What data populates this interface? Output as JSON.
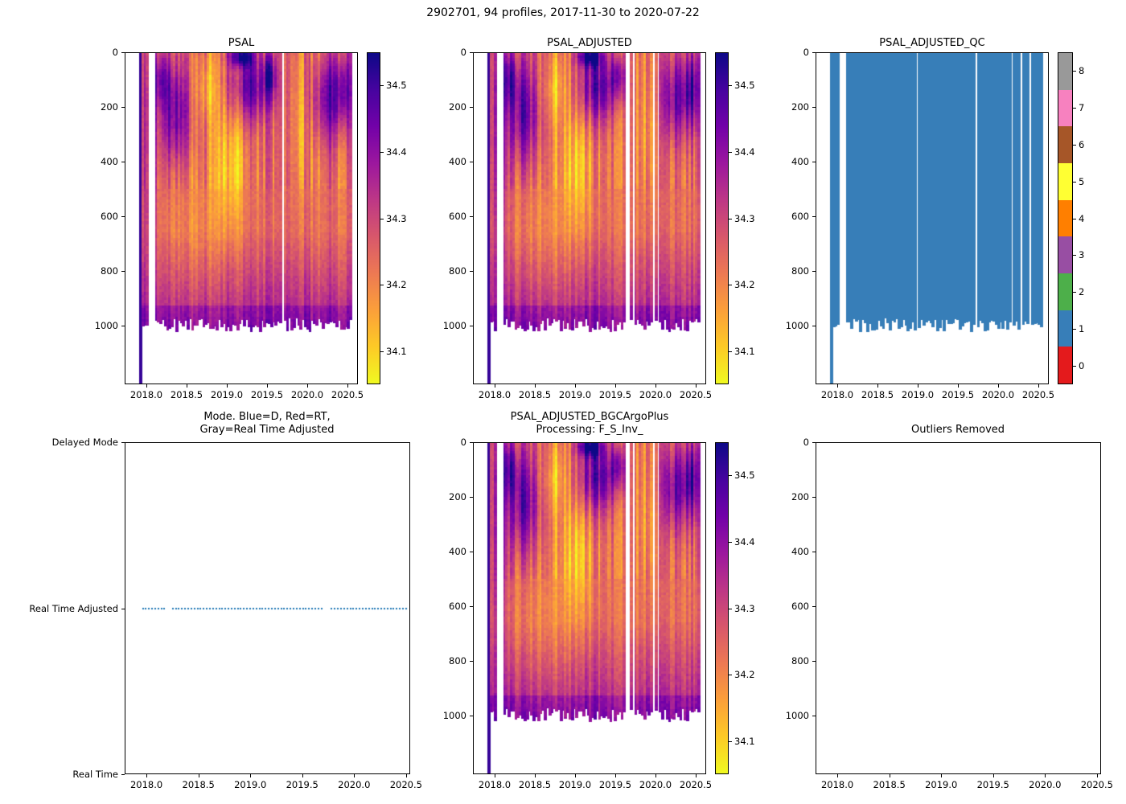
{
  "figure": {
    "suptitle": "2902701, 94 profiles, 2017-11-30 to 2020-07-22",
    "background": "#ffffff",
    "text_color": "#000000"
  },
  "colormap_plasma_r_stops": [
    "#0d0887",
    "#46039f",
    "#7201a8",
    "#9c179e",
    "#bd3786",
    "#d8576b",
    "#ed7953",
    "#fb9f3a",
    "#fdca26",
    "#f0f921"
  ],
  "qc_palette": [
    "#e41a1c",
    "#377eb8",
    "#4daf4a",
    "#984ea3",
    "#ff7f00",
    "#ffff33",
    "#a65628",
    "#f781bf",
    "#999999"
  ],
  "heatmap_features_note": "approximate high(+)/low(-) salinity patches read from the figure: time(year), depth(m), sigmas, amplitude(psu)",
  "heatmap_features": [
    {
      "t": 2018.35,
      "d": 220,
      "st": 0.14,
      "sd": 130,
      "a": 0.2
    },
    {
      "t": 2018.18,
      "d": 90,
      "st": 0.08,
      "sd": 70,
      "a": 0.15
    },
    {
      "t": 2019.3,
      "d": 120,
      "st": 0.18,
      "sd": 90,
      "a": 0.22
    },
    {
      "t": 2019.18,
      "d": 10,
      "st": 0.1,
      "sd": 25,
      "a": 0.3
    },
    {
      "t": 2019.55,
      "d": 80,
      "st": 0.06,
      "sd": 60,
      "a": 0.18
    },
    {
      "t": 2020.28,
      "d": 160,
      "st": 0.16,
      "sd": 110,
      "a": 0.2
    },
    {
      "t": 2020.47,
      "d": 120,
      "st": 0.07,
      "sd": 100,
      "a": 0.16
    },
    {
      "t": 2019.05,
      "d": 420,
      "st": 0.14,
      "sd": 160,
      "a": -0.12
    },
    {
      "t": 2018.75,
      "d": 120,
      "st": 0.1,
      "sd": 90,
      "a": -0.1
    },
    {
      "t": 2019.95,
      "d": 250,
      "st": 0.09,
      "sd": 180,
      "a": -0.08
    },
    {
      "t": 2018.6,
      "d": 650,
      "st": 0.25,
      "sd": 250,
      "a": -0.05
    },
    {
      "t": 2018.05,
      "d": 300,
      "st": 0.05,
      "sd": 400,
      "a": 0.22
    }
  ],
  "chart_data": [
    {
      "id": "psal",
      "type": "heatmap",
      "title": "PSAL",
      "x": {
        "lim": [
          2017.73,
          2020.63
        ],
        "ticks": [
          2018.0,
          2018.5,
          2019.0,
          2019.5,
          2020.0,
          2020.5
        ],
        "tick_labels": [
          "2018.0",
          "2018.5",
          "2019.0",
          "2019.5",
          "2020.0",
          "2020.5"
        ]
      },
      "y": {
        "lim": [
          0,
          1215
        ],
        "ticks": [
          0,
          200,
          400,
          600,
          800,
          1000
        ],
        "tick_labels": [
          "0",
          "200",
          "400",
          "600",
          "800",
          "1000"
        ],
        "inverted": true
      },
      "colorbar": {
        "colormap": "plasma_r",
        "vmin": 34.05,
        "vmax": 34.55,
        "ticks": [
          34.1,
          34.2,
          34.3,
          34.4,
          34.5
        ],
        "tick_labels": [
          "34.1",
          "34.2",
          "34.3",
          "34.4",
          "34.5"
        ]
      },
      "data_summary": {
        "n_profiles": 94,
        "time_start": 2017.92,
        "time_end": 2020.55,
        "profile_max_depth": 1000,
        "first_profile_depth": 1215,
        "gaps": [
          2018.03,
          2018.06,
          2018.09,
          2019.7
        ],
        "value_range": [
          34.05,
          34.55
        ]
      },
      "seed": 11
    },
    {
      "id": "psal_adjusted",
      "type": "heatmap",
      "title": "PSAL_ADJUSTED",
      "x": {
        "lim": [
          2017.73,
          2020.63
        ],
        "ticks": [
          2018.0,
          2018.5,
          2019.0,
          2019.5,
          2020.0,
          2020.5
        ],
        "tick_labels": [
          "2018.0",
          "2018.5",
          "2019.0",
          "2019.5",
          "2020.0",
          "2020.5"
        ]
      },
      "y": {
        "lim": [
          0,
          1215
        ],
        "ticks": [
          0,
          200,
          400,
          600,
          800,
          1000
        ],
        "tick_labels": [
          "0",
          "200",
          "400",
          "600",
          "800",
          "1000"
        ],
        "inverted": true
      },
      "colorbar": {
        "colormap": "plasma_r",
        "vmin": 34.05,
        "vmax": 34.55,
        "ticks": [
          34.1,
          34.2,
          34.3,
          34.4,
          34.5
        ],
        "tick_labels": [
          "34.1",
          "34.2",
          "34.3",
          "34.4",
          "34.5"
        ]
      },
      "data_summary": {
        "n_profiles": 94,
        "time_start": 2017.92,
        "time_end": 2020.55,
        "profile_max_depth": 1000,
        "first_profile_depth": 1215,
        "gaps": [
          2018.03,
          2018.06,
          2018.09,
          2019.66,
          2019.72,
          2019.98,
          2020.04
        ],
        "value_range": [
          34.05,
          34.55
        ]
      },
      "seed": 23
    },
    {
      "id": "qc",
      "type": "heatmap_discrete",
      "title": "PSAL_ADJUSTED_QC",
      "x": {
        "lim": [
          2017.73,
          2020.63
        ],
        "ticks": [
          2018.0,
          2018.5,
          2019.0,
          2019.5,
          2020.0,
          2020.5
        ],
        "tick_labels": [
          "2018.0",
          "2018.5",
          "2019.0",
          "2019.5",
          "2020.0",
          "2020.5"
        ]
      },
      "y": {
        "lim": [
          0,
          1215
        ],
        "ticks": [
          0,
          200,
          400,
          600,
          800,
          1000
        ],
        "tick_labels": [
          "0",
          "200",
          "400",
          "600",
          "800",
          "1000"
        ],
        "inverted": true
      },
      "colorbar": {
        "discrete": true,
        "vmin": -0.5,
        "vmax": 8.5,
        "ticks": [
          0,
          1,
          2,
          3,
          4,
          5,
          6,
          7,
          8
        ],
        "tick_labels": [
          "0",
          "1",
          "2",
          "3",
          "4",
          "5",
          "6",
          "7",
          "8"
        ]
      },
      "dominant_qc_value": 1,
      "data_summary": {
        "n_profiles": 94,
        "time_start": 2017.92,
        "time_end": 2020.55,
        "profile_max_depth": 1000,
        "first_profile_depth": 1215,
        "gaps": [
          2018.03,
          2018.06,
          2018.09,
          2018.99,
          2019.72,
          2020.19,
          2020.3,
          2020.41
        ],
        "value_range": [
          1,
          1
        ]
      },
      "seed": 5
    },
    {
      "id": "mode",
      "type": "scatter",
      "title_lines": [
        "Mode. Blue=D, Red=RT,",
        "Gray=Real Time Adjusted"
      ],
      "x": {
        "lim": [
          2017.79,
          2020.54
        ],
        "ticks": [
          2018.0,
          2018.5,
          2019.0,
          2019.5,
          2020.0,
          2020.5
        ],
        "tick_labels": [
          "2018.0",
          "2018.5",
          "2019.0",
          "2019.5",
          "2020.0",
          "2020.5"
        ]
      },
      "y": {
        "categories": [
          "Delayed Mode",
          "Real Time Adjusted",
          "Real Time"
        ]
      },
      "series": [
        {
          "name": "mode",
          "value": "Real Time Adjusted",
          "color": "#1f77b4",
          "style": "dotted",
          "segments": [
            [
              2017.95,
              2018.16
            ],
            [
              2018.24,
              2019.7
            ],
            [
              2019.78,
              2020.5
            ]
          ]
        }
      ]
    },
    {
      "id": "bgc",
      "type": "heatmap",
      "title_lines": [
        "PSAL_ADJUSTED_BGCArgoPlus",
        "Processing: F_S_Inv_"
      ],
      "x": {
        "lim": [
          2017.73,
          2020.63
        ],
        "ticks": [
          2018.0,
          2018.5,
          2019.0,
          2019.5,
          2020.0,
          2020.5
        ],
        "tick_labels": [
          "2018.0",
          "2018.5",
          "2019.0",
          "2019.5",
          "2020.0",
          "2020.5"
        ]
      },
      "y": {
        "lim": [
          0,
          1215
        ],
        "ticks": [
          0,
          200,
          400,
          600,
          800,
          1000
        ],
        "tick_labels": [
          "0",
          "200",
          "400",
          "600",
          "800",
          "1000"
        ],
        "inverted": true
      },
      "colorbar": {
        "colormap": "plasma_r",
        "vmin": 34.05,
        "vmax": 34.55,
        "ticks": [
          34.1,
          34.2,
          34.3,
          34.4,
          34.5
        ],
        "tick_labels": [
          "34.1",
          "34.2",
          "34.3",
          "34.4",
          "34.5"
        ]
      },
      "data_summary": {
        "n_profiles": 94,
        "time_start": 2017.92,
        "time_end": 2020.55,
        "profile_max_depth": 1000,
        "first_profile_depth": 1215,
        "gaps": [
          2018.03,
          2018.06,
          2018.09,
          2019.66,
          2019.72,
          2019.98,
          2020.04
        ],
        "value_range": [
          34.05,
          34.55
        ]
      },
      "seed": 23
    },
    {
      "id": "outliers",
      "type": "empty",
      "title": "Outliers Removed",
      "x": {
        "lim": [
          2017.79,
          2020.54
        ],
        "ticks": [
          2018.0,
          2018.5,
          2019.0,
          2019.5,
          2020.0,
          2020.5
        ],
        "tick_labels": [
          "2018.0",
          "2018.5",
          "2019.0",
          "2019.5",
          "2020.0",
          "2020.5"
        ]
      },
      "y": {
        "lim": [
          0,
          1215
        ],
        "ticks": [
          0,
          200,
          400,
          600,
          800,
          1000
        ],
        "tick_labels": [
          "0",
          "200",
          "400",
          "600",
          "800",
          "1000"
        ],
        "inverted": true
      }
    }
  ]
}
